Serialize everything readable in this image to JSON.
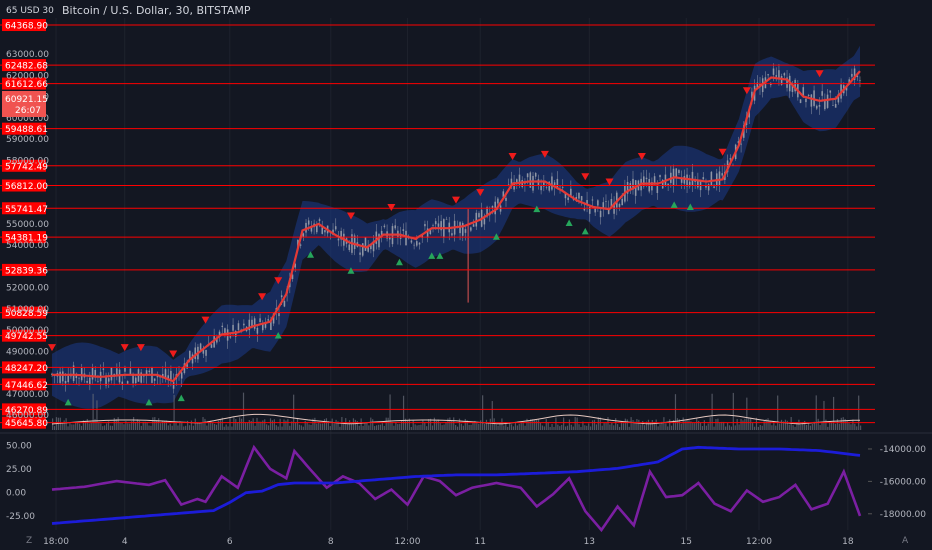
{
  "header": {
    "title": "Bitcoin / U.S. Dollar, 30, BITSTAMP",
    "corner_label": "65 USD 30"
  },
  "current_price": {
    "value": "60921.15",
    "countdown": "26:07"
  },
  "bottom_corner": {
    "left": "Z",
    "right": "A"
  },
  "colors": {
    "background": "#131722",
    "level_line": "#ff0000",
    "level_label_bg": "#ff0000",
    "current_label_bg": "#f05350",
    "candle": "#9aa0ac",
    "basis": "#e53935",
    "band_fill": "#1c3b8a",
    "sell_marker": "#ef1b1b",
    "buy_marker": "#26a65b",
    "volume": "#6b6f7a",
    "volume_line": "#e6c8c0",
    "osc_purple": "#7b1fa2",
    "osc_blue": "#1c1cd9",
    "axis_text": "#b2b5be"
  },
  "chart_data": [
    {
      "type": "line",
      "panel": "price",
      "y_axis_side": "left",
      "y_scale": "linear",
      "ylim": [
        45300,
        64700
      ],
      "y_ticks": [
        63000,
        62000,
        61000,
        60000,
        59000,
        58000,
        55000,
        54000,
        52000,
        51000,
        50000,
        49000,
        47000,
        46000
      ],
      "levels": [
        64368.9,
        62482.68,
        61612.66,
        59488.61,
        57742.49,
        56812.0,
        55741.47,
        54381.19,
        52839.36,
        50828.59,
        49742.55,
        48247.2,
        47446.62,
        46270.89,
        45645.8
      ],
      "x_ticks": [
        "18:00",
        "4",
        "6",
        "8",
        "12:00",
        "11",
        "13",
        "15",
        "12:00",
        "18"
      ],
      "series": [
        {
          "role": "basis",
          "x": [
            0,
            0.03,
            0.06,
            0.09,
            0.11,
            0.13,
            0.15,
            0.17,
            0.19,
            0.21,
            0.23,
            0.25,
            0.27,
            0.29,
            0.31,
            0.33,
            0.35,
            0.37,
            0.39,
            0.41,
            0.43,
            0.45,
            0.47,
            0.49,
            0.51,
            0.53,
            0.55,
            0.57,
            0.59,
            0.61,
            0.63,
            0.65,
            0.67,
            0.69,
            0.71,
            0.73,
            0.75,
            0.77,
            0.79,
            0.81,
            0.83,
            0.85,
            0.87,
            0.89,
            0.91,
            0.93,
            0.95,
            0.97,
            1.0
          ],
          "values": [
            47900,
            47900,
            47800,
            47900,
            47900,
            47900,
            47600,
            48600,
            49200,
            49800,
            49900,
            50200,
            50400,
            51700,
            54700,
            55000,
            54500,
            54100,
            53900,
            54500,
            54500,
            54300,
            54800,
            54800,
            54900,
            55200,
            55700,
            56900,
            57000,
            57000,
            56600,
            56100,
            55800,
            55700,
            56500,
            56900,
            56900,
            57200,
            57100,
            57000,
            57100,
            58700,
            61300,
            61900,
            61800,
            61000,
            60800,
            60900,
            62200
          ]
        }
      ],
      "markers": {
        "sell_x": [
          0.0,
          0.09,
          0.11,
          0.15,
          0.19,
          0.26,
          0.28,
          0.37,
          0.42,
          0.5,
          0.53,
          0.57,
          0.61,
          0.66,
          0.69,
          0.73,
          0.83,
          0.86,
          0.95
        ],
        "buy_x": [
          0.02,
          0.12,
          0.16,
          0.28,
          0.32,
          0.37,
          0.43,
          0.47,
          0.48,
          0.55,
          0.6,
          0.64,
          0.66,
          0.77,
          0.79
        ]
      }
    },
    {
      "type": "line",
      "panel": "oscillator",
      "y_axis_left_ticks": [
        50.0,
        25.0,
        0.0,
        -25.0
      ],
      "y_axis_right_ticks": [
        -14000.0,
        -16000.0,
        -18000.0
      ],
      "ylim_left": [
        -40,
        60
      ],
      "ylim_right": [
        -19000,
        -13200
      ],
      "series": [
        {
          "role": "purple",
          "axis": "left",
          "x": [
            0,
            0.04,
            0.08,
            0.1,
            0.12,
            0.14,
            0.16,
            0.18,
            0.19,
            0.21,
            0.23,
            0.25,
            0.27,
            0.29,
            0.3,
            0.32,
            0.34,
            0.36,
            0.38,
            0.4,
            0.42,
            0.44,
            0.46,
            0.48,
            0.5,
            0.52,
            0.55,
            0.58,
            0.6,
            0.62,
            0.64,
            0.66,
            0.68,
            0.7,
            0.72,
            0.74,
            0.76,
            0.78,
            0.8,
            0.82,
            0.84,
            0.86,
            0.88,
            0.9,
            0.92,
            0.94,
            0.96,
            0.98,
            1.0
          ],
          "values": [
            3,
            6,
            12,
            10,
            8,
            13,
            -13,
            -7,
            -10,
            17,
            5,
            48,
            25,
            15,
            44,
            24,
            5,
            17,
            10,
            -7,
            3,
            -13,
            17,
            12,
            -3,
            5,
            10,
            5,
            -15,
            -2,
            15,
            -20,
            -40,
            -15,
            -35,
            22,
            -5,
            -3,
            10,
            -12,
            -20,
            2,
            -10,
            -5,
            8,
            -18,
            -12,
            22,
            -25
          ]
        },
        {
          "role": "blue",
          "axis": "right",
          "x": [
            0,
            0.05,
            0.1,
            0.15,
            0.2,
            0.22,
            0.24,
            0.26,
            0.28,
            0.3,
            0.35,
            0.4,
            0.45,
            0.5,
            0.55,
            0.6,
            0.65,
            0.7,
            0.75,
            0.78,
            0.8,
            0.85,
            0.9,
            0.95,
            1.0
          ],
          "values": [
            -18600,
            -18400,
            -18200,
            -18000,
            -17800,
            -17300,
            -16700,
            -16600,
            -16200,
            -16100,
            -16100,
            -15900,
            -15700,
            -15600,
            -15600,
            -15500,
            -15400,
            -15200,
            -14800,
            -14000,
            -13900,
            -14000,
            -14000,
            -14100,
            -14400
          ]
        }
      ]
    }
  ]
}
